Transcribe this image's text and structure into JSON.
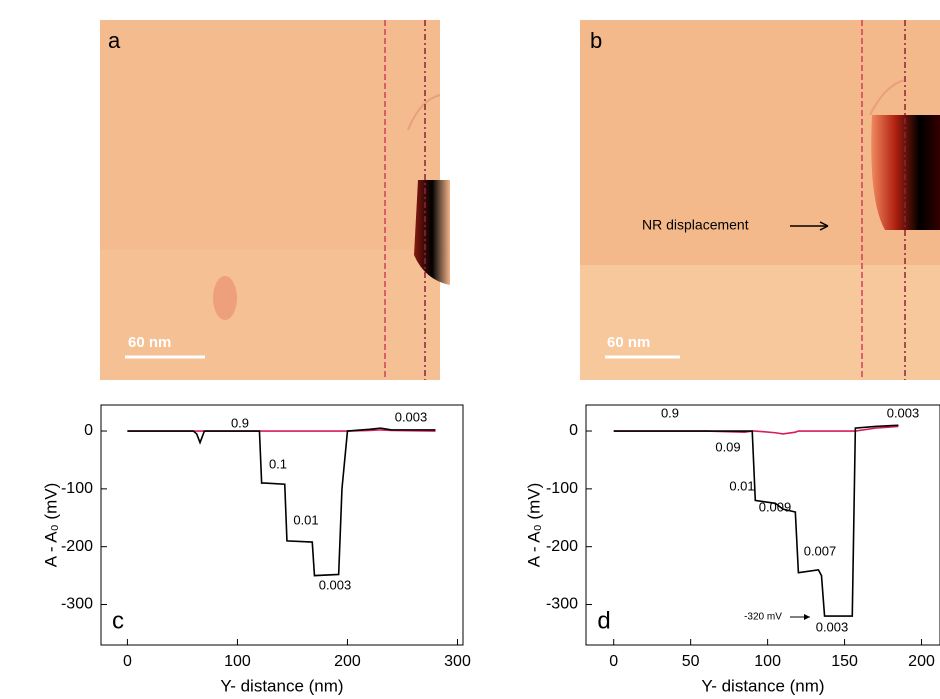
{
  "panels": [
    {
      "label": "a",
      "scale_bar": "60 nm"
    },
    {
      "label": "b",
      "scale_bar": "60 nm",
      "annotation": "NR displacement"
    }
  ],
  "chart_data": [
    {
      "type": "line",
      "panel_label": "c",
      "x_label": "Y- distance (nm)",
      "y_label": "A - A₀ (mV)",
      "x": [
        0,
        60,
        63,
        66,
        70,
        120,
        122,
        125,
        143,
        145,
        168,
        170,
        192,
        195,
        200,
        220,
        230,
        240,
        280
      ],
      "series": [
        {
          "color": "#000000",
          "values": [
            0,
            0,
            -5,
            -20,
            0,
            0,
            -90,
            -90,
            -92,
            -190,
            -192,
            -250,
            -248,
            -100,
            0,
            3,
            5,
            2,
            2
          ]
        },
        {
          "color": "#d81b60",
          "values": [
            0,
            0,
            0,
            0,
            0,
            0,
            0,
            0,
            0,
            0,
            0,
            0,
            0,
            0,
            0,
            1,
            2,
            1,
            0
          ]
        }
      ],
      "annotations": [
        "0.9",
        "0.1",
        "0.01",
        "0.003",
        "0.003"
      ],
      "xlim": [
        -24,
        305
      ],
      "ylim": [
        -370,
        45
      ],
      "xticks": [
        0,
        100,
        200,
        300
      ],
      "yticks": [
        0,
        -100,
        -200,
        -300
      ]
    },
    {
      "type": "line",
      "panel_label": "d",
      "x_label": "Y- distance (nm)",
      "y_label": "A - A₀ (mV)",
      "x": [
        0,
        60,
        85,
        90,
        92,
        105,
        110,
        118,
        120,
        133,
        135,
        137,
        155,
        157,
        170,
        185
      ],
      "series": [
        {
          "color": "#000000",
          "values": [
            0,
            0,
            0,
            0,
            -120,
            -125,
            -135,
            -140,
            -245,
            -240,
            -250,
            -320,
            -320,
            5,
            8,
            10
          ]
        },
        {
          "color": "#d81b60",
          "values": [
            0,
            0,
            -2,
            0,
            0,
            -3,
            -5,
            -2,
            0,
            0,
            0,
            0,
            0,
            0,
            5,
            8
          ]
        }
      ],
      "annotations": [
        "0.9",
        "0.09",
        "0.01",
        "0.009",
        "0.007",
        "0.003",
        "0.003",
        "-320 mV"
      ],
      "xlim": [
        -18,
        212
      ],
      "ylim": [
        -370,
        45
      ],
      "xticks": [
        0,
        50,
        100,
        150,
        200
      ],
      "yticks": [
        0,
        -100,
        -200,
        -300
      ]
    }
  ]
}
